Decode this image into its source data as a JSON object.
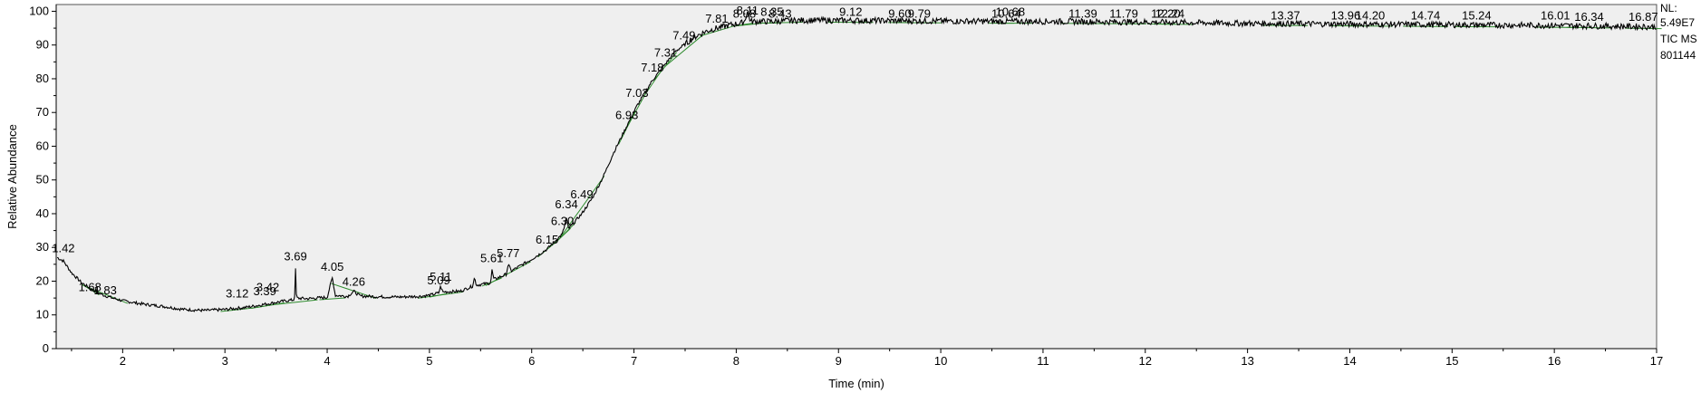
{
  "chart_data": {
    "type": "line",
    "xlabel": "Time (min)",
    "ylabel": "Relative Abundance",
    "xlim": [
      1.35,
      17.0
    ],
    "ylim": [
      0,
      102
    ],
    "x_ticks": [
      "2",
      "3",
      "4",
      "5",
      "6",
      "7",
      "8",
      "9",
      "10",
      "11",
      "12",
      "13",
      "14",
      "15",
      "16",
      "17"
    ],
    "y_ticks": [
      "0",
      "10",
      "20",
      "30",
      "40",
      "50",
      "60",
      "70",
      "80",
      "90",
      "100"
    ],
    "info": [
      "NL:",
      "5.49E7",
      "TIC  MS",
      "801144"
    ],
    "peak_labels": [
      {
        "x": 1.42,
        "y": 27,
        "label": "1.42"
      },
      {
        "x": 1.68,
        "y": 15.5,
        "label": "1.68"
      },
      {
        "x": 1.83,
        "y": 14.5,
        "label": "1.83"
      },
      {
        "x": 3.12,
        "y": 13.5,
        "label": "3.12"
      },
      {
        "x": 3.39,
        "y": 14.2,
        "label": "3.39"
      },
      {
        "x": 3.42,
        "y": 15.5,
        "label": "3.42"
      },
      {
        "x": 3.69,
        "y": 24.5,
        "label": "3.69"
      },
      {
        "x": 4.05,
        "y": 21.5,
        "label": "4.05"
      },
      {
        "x": 4.26,
        "y": 17,
        "label": "4.26"
      },
      {
        "x": 5.09,
        "y": 17.5,
        "label": "5.09"
      },
      {
        "x": 5.11,
        "y": 18.5,
        "label": "5.11"
      },
      {
        "x": 5.61,
        "y": 24,
        "label": "5.61"
      },
      {
        "x": 5.77,
        "y": 25.5,
        "label": "5.77"
      },
      {
        "x": 6.15,
        "y": 29.5,
        "label": "6.15"
      },
      {
        "x": 6.3,
        "y": 35,
        "label": "6.30"
      },
      {
        "x": 6.34,
        "y": 40,
        "label": "6.34"
      },
      {
        "x": 6.49,
        "y": 43,
        "label": "6.49"
      },
      {
        "x": 6.93,
        "y": 66.5,
        "label": "6.93"
      },
      {
        "x": 7.03,
        "y": 73,
        "label": "7.03"
      },
      {
        "x": 7.18,
        "y": 80.5,
        "label": "7.18"
      },
      {
        "x": 7.31,
        "y": 85,
        "label": "7.31"
      },
      {
        "x": 7.49,
        "y": 90,
        "label": "7.49"
      },
      {
        "x": 7.81,
        "y": 95,
        "label": "7.81"
      },
      {
        "x": 8.08,
        "y": 96.5,
        "label": "8.08"
      },
      {
        "x": 8.11,
        "y": 100,
        "label": "8.11"
      },
      {
        "x": 8.35,
        "y": 97,
        "label": "8.35"
      },
      {
        "x": 8.43,
        "y": 96.5,
        "label": "8.43"
      },
      {
        "x": 9.12,
        "y": 97,
        "label": "9.12"
      },
      {
        "x": 9.6,
        "y": 96.5,
        "label": "9.60"
      },
      {
        "x": 9.79,
        "y": 96.5,
        "label": "9.79"
      },
      {
        "x": 10.64,
        "y": 96.5,
        "label": "10.64"
      },
      {
        "x": 10.68,
        "y": 97,
        "label": "10.68"
      },
      {
        "x": 11.39,
        "y": 96.5,
        "label": "11.39"
      },
      {
        "x": 11.79,
        "y": 96.5,
        "label": "11.79"
      },
      {
        "x": 12.2,
        "y": 96.5,
        "label": "12.20"
      },
      {
        "x": 12.24,
        "y": 96.5,
        "label": "12.24"
      },
      {
        "x": 13.37,
        "y": 96,
        "label": "13.37"
      },
      {
        "x": 13.96,
        "y": 96,
        "label": "13.96"
      },
      {
        "x": 14.2,
        "y": 96,
        "label": "14.20"
      },
      {
        "x": 14.74,
        "y": 96,
        "label": "14.74"
      },
      {
        "x": 15.24,
        "y": 96,
        "label": "15.24"
      },
      {
        "x": 16.01,
        "y": 96,
        "label": "16.01"
      },
      {
        "x": 16.34,
        "y": 95.5,
        "label": "16.34"
      },
      {
        "x": 16.87,
        "y": 95.5,
        "label": "16.87"
      }
    ],
    "baseline_points": [
      [
        1.36,
        27
      ],
      [
        1.42,
        26
      ],
      [
        1.5,
        22.5
      ],
      [
        1.6,
        19.5
      ],
      [
        1.7,
        17.5
      ],
      [
        1.8,
        16
      ],
      [
        1.9,
        15
      ],
      [
        2.0,
        14.2
      ],
      [
        2.2,
        13.2
      ],
      [
        2.4,
        12.5
      ],
      [
        2.6,
        11.6
      ],
      [
        2.8,
        11.3
      ],
      [
        3.0,
        11.6
      ],
      [
        3.2,
        12.2
      ],
      [
        3.4,
        13.2
      ],
      [
        3.6,
        14.2
      ],
      [
        3.68,
        14.5
      ],
      [
        3.69,
        23.5
      ],
      [
        3.7,
        15
      ],
      [
        3.8,
        14.8
      ],
      [
        4.0,
        15.2
      ],
      [
        4.05,
        21
      ],
      [
        4.08,
        15.8
      ],
      [
        4.2,
        15.5
      ],
      [
        4.26,
        17
      ],
      [
        4.32,
        15.6
      ],
      [
        4.5,
        15.4
      ],
      [
        4.7,
        15.3
      ],
      [
        4.9,
        15.5
      ],
      [
        5.0,
        15.8
      ],
      [
        5.09,
        16.5
      ],
      [
        5.11,
        18.5
      ],
      [
        5.13,
        16.8
      ],
      [
        5.3,
        17
      ],
      [
        5.42,
        18.5
      ],
      [
        5.44,
        21
      ],
      [
        5.46,
        18.8
      ],
      [
        5.6,
        19.5
      ],
      [
        5.61,
        23.5
      ],
      [
        5.63,
        20.5
      ],
      [
        5.75,
        22
      ],
      [
        5.77,
        25
      ],
      [
        5.8,
        23
      ],
      [
        6.0,
        26.5
      ],
      [
        6.15,
        29.5
      ],
      [
        6.3,
        34
      ],
      [
        6.34,
        38.5
      ],
      [
        6.36,
        35.5
      ],
      [
        6.49,
        40
      ],
      [
        6.6,
        45
      ],
      [
        6.7,
        51
      ],
      [
        6.8,
        58
      ],
      [
        6.93,
        66
      ],
      [
        7.03,
        72
      ],
      [
        7.18,
        79.5
      ],
      [
        7.31,
        84.5
      ],
      [
        7.4,
        88
      ],
      [
        7.49,
        90
      ],
      [
        7.6,
        92.5
      ],
      [
        7.7,
        94
      ],
      [
        7.81,
        95
      ],
      [
        7.95,
        96
      ],
      [
        8.05,
        96.5
      ],
      [
        8.08,
        97
      ],
      [
        8.11,
        100
      ],
      [
        8.14,
        97
      ],
      [
        8.35,
        97
      ],
      [
        8.6,
        97.3
      ],
      [
        9.0,
        97.3
      ],
      [
        9.5,
        97.2
      ],
      [
        10.0,
        97.1
      ],
      [
        10.5,
        97
      ],
      [
        11.0,
        97
      ],
      [
        11.5,
        96.9
      ],
      [
        12.0,
        96.8
      ],
      [
        12.5,
        96.6
      ],
      [
        13.0,
        96.4
      ],
      [
        13.5,
        96.3
      ],
      [
        14.0,
        96.2
      ],
      [
        14.5,
        96.1
      ],
      [
        15.0,
        96
      ],
      [
        15.5,
        95.9
      ],
      [
        16.0,
        95.8
      ],
      [
        16.5,
        95.6
      ],
      [
        17.0,
        95.4
      ]
    ],
    "colors": {
      "plot_bg": "#efefef",
      "trace": "#000000",
      "baseline_marker": "#2e8b2e"
    }
  }
}
